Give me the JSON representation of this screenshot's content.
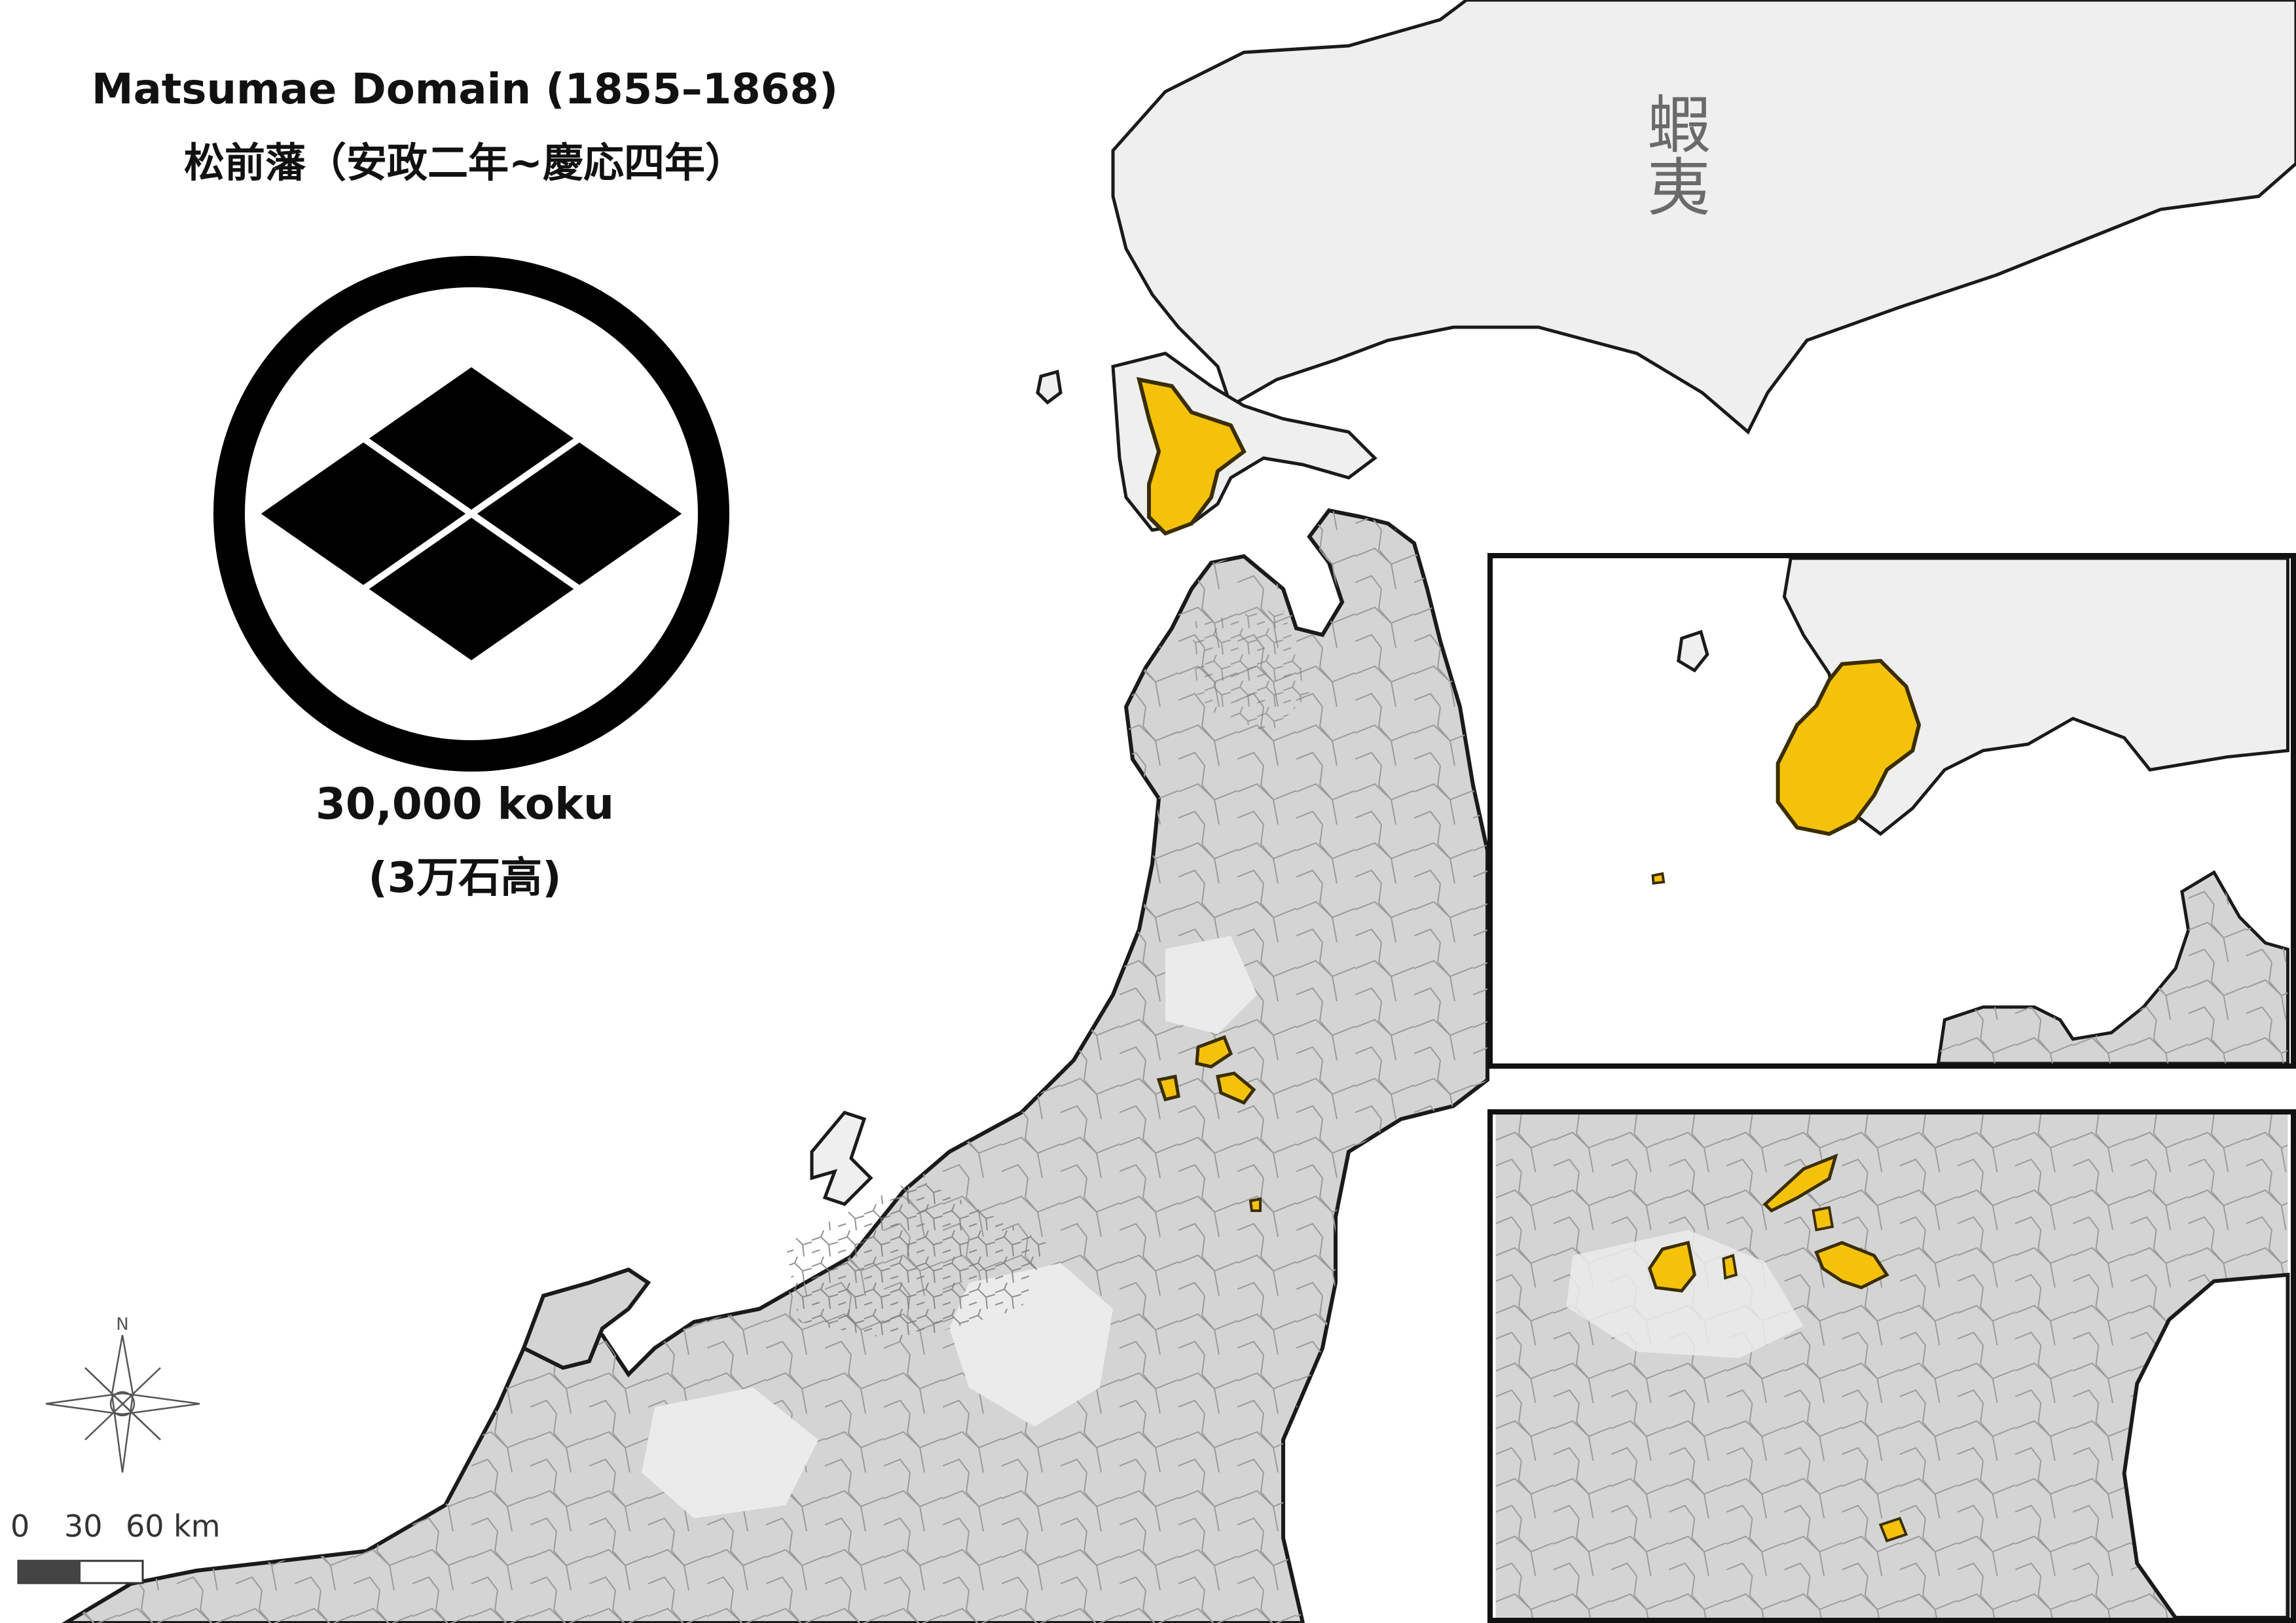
{
  "map": {
    "title_en": "Matsumae Domain (1855–1868)",
    "title_jp": "松前藩（安政二年~慶応四年）",
    "koku_en": "30,000 koku",
    "koku_jp": "(3万石高)",
    "region_label": "蝦夷",
    "compass_label": "N",
    "scale_labels": [
      "0",
      "30",
      "60 km"
    ],
    "colors": {
      "domain_fill": "#f5c20a",
      "domain_outline": "#3a2e00",
      "land_fill": "#d4d4d4",
      "ezo_fill": "#efefef",
      "unmapped_fill": "#ebebeb",
      "coast_outline": "#1a1a1a",
      "boundary_lines": "#8a8a8a"
    },
    "crest": "yotsubishi-in-circle",
    "insets": [
      "oshima-peninsula-detail",
      "central-honshu-enclaves-detail"
    ]
  }
}
